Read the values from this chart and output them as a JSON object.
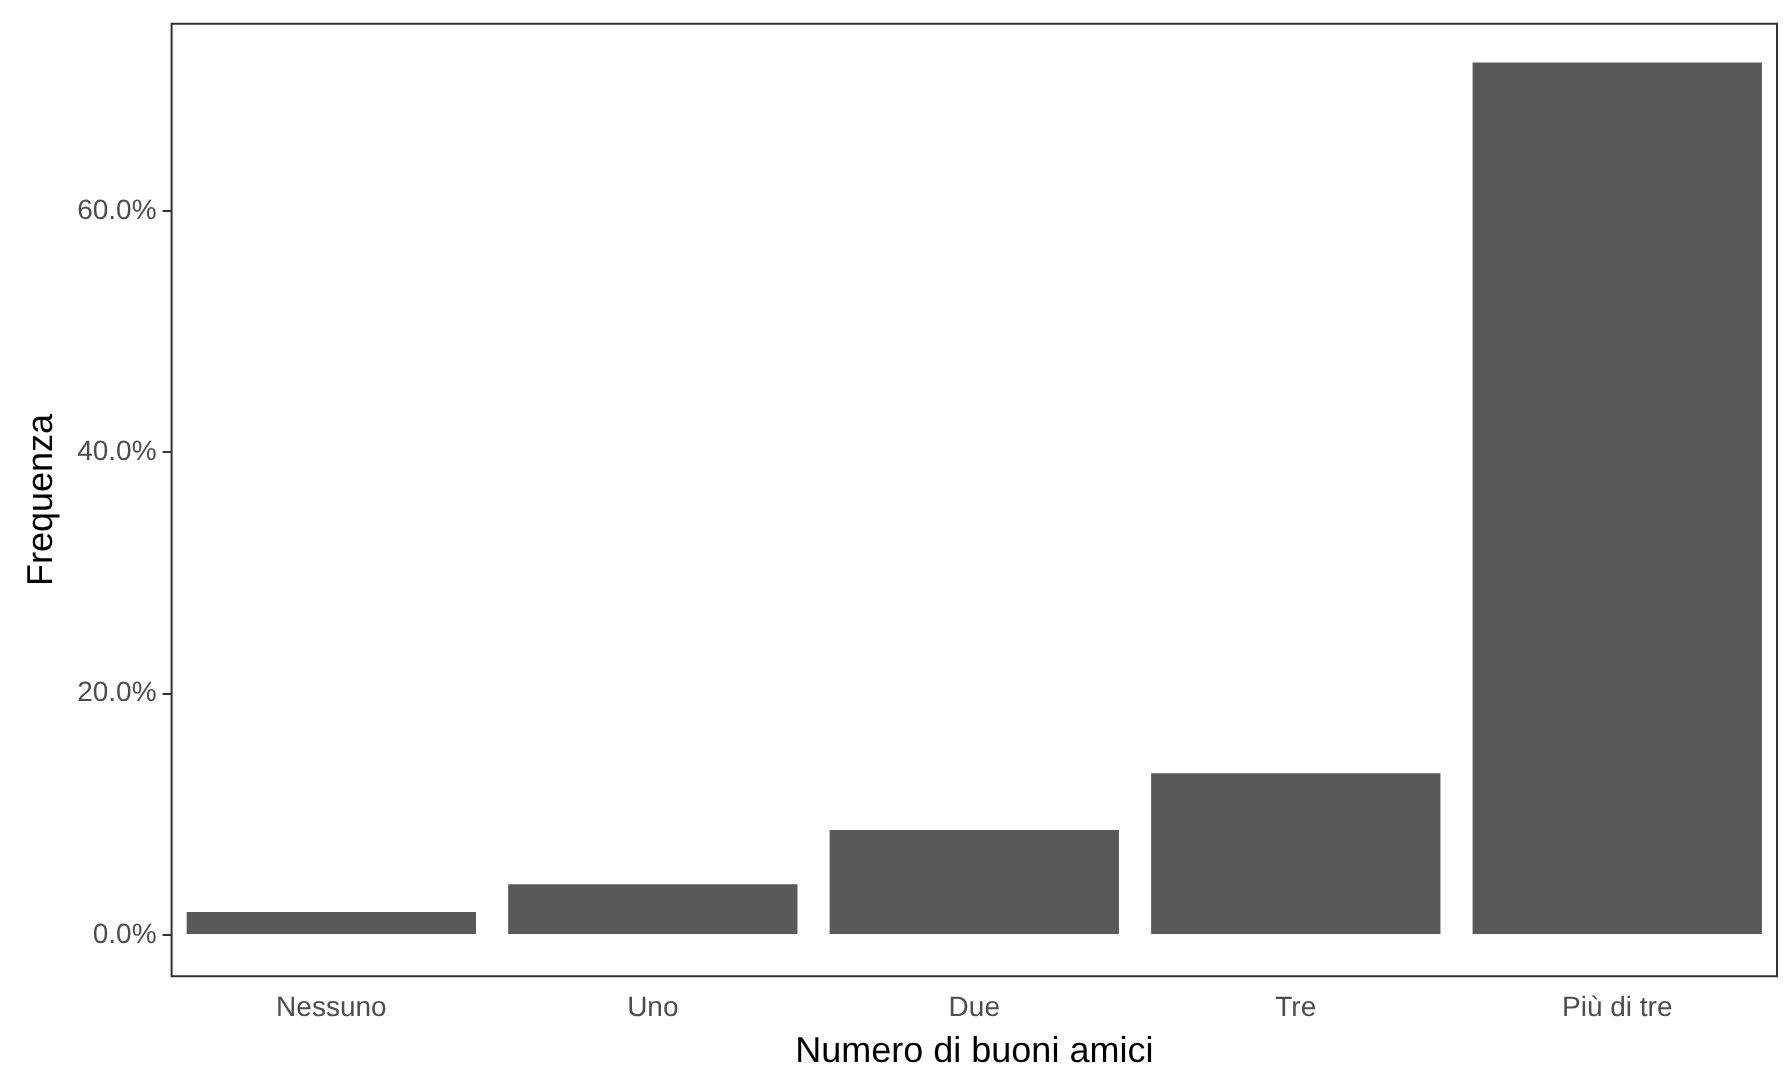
{
  "chart_data": {
    "type": "bar",
    "xlabel": "Numero di buoni amici",
    "ylabel": "Frequenza",
    "categories": [
      "Nessuno",
      "Uno",
      "Due",
      "Tre",
      "Più di tre"
    ],
    "values": [
      1.9,
      4.2,
      8.7,
      13.4,
      72.3
    ],
    "color": "#595959",
    "ylim": [
      -3.5,
      75.6
    ],
    "yticks": [
      {
        "value": 0,
        "label": "0.0%"
      },
      {
        "value": 20,
        "label": "20.0%"
      },
      {
        "value": 40,
        "label": "40.0%"
      },
      {
        "value": 60,
        "label": "60.0%"
      }
    ]
  }
}
